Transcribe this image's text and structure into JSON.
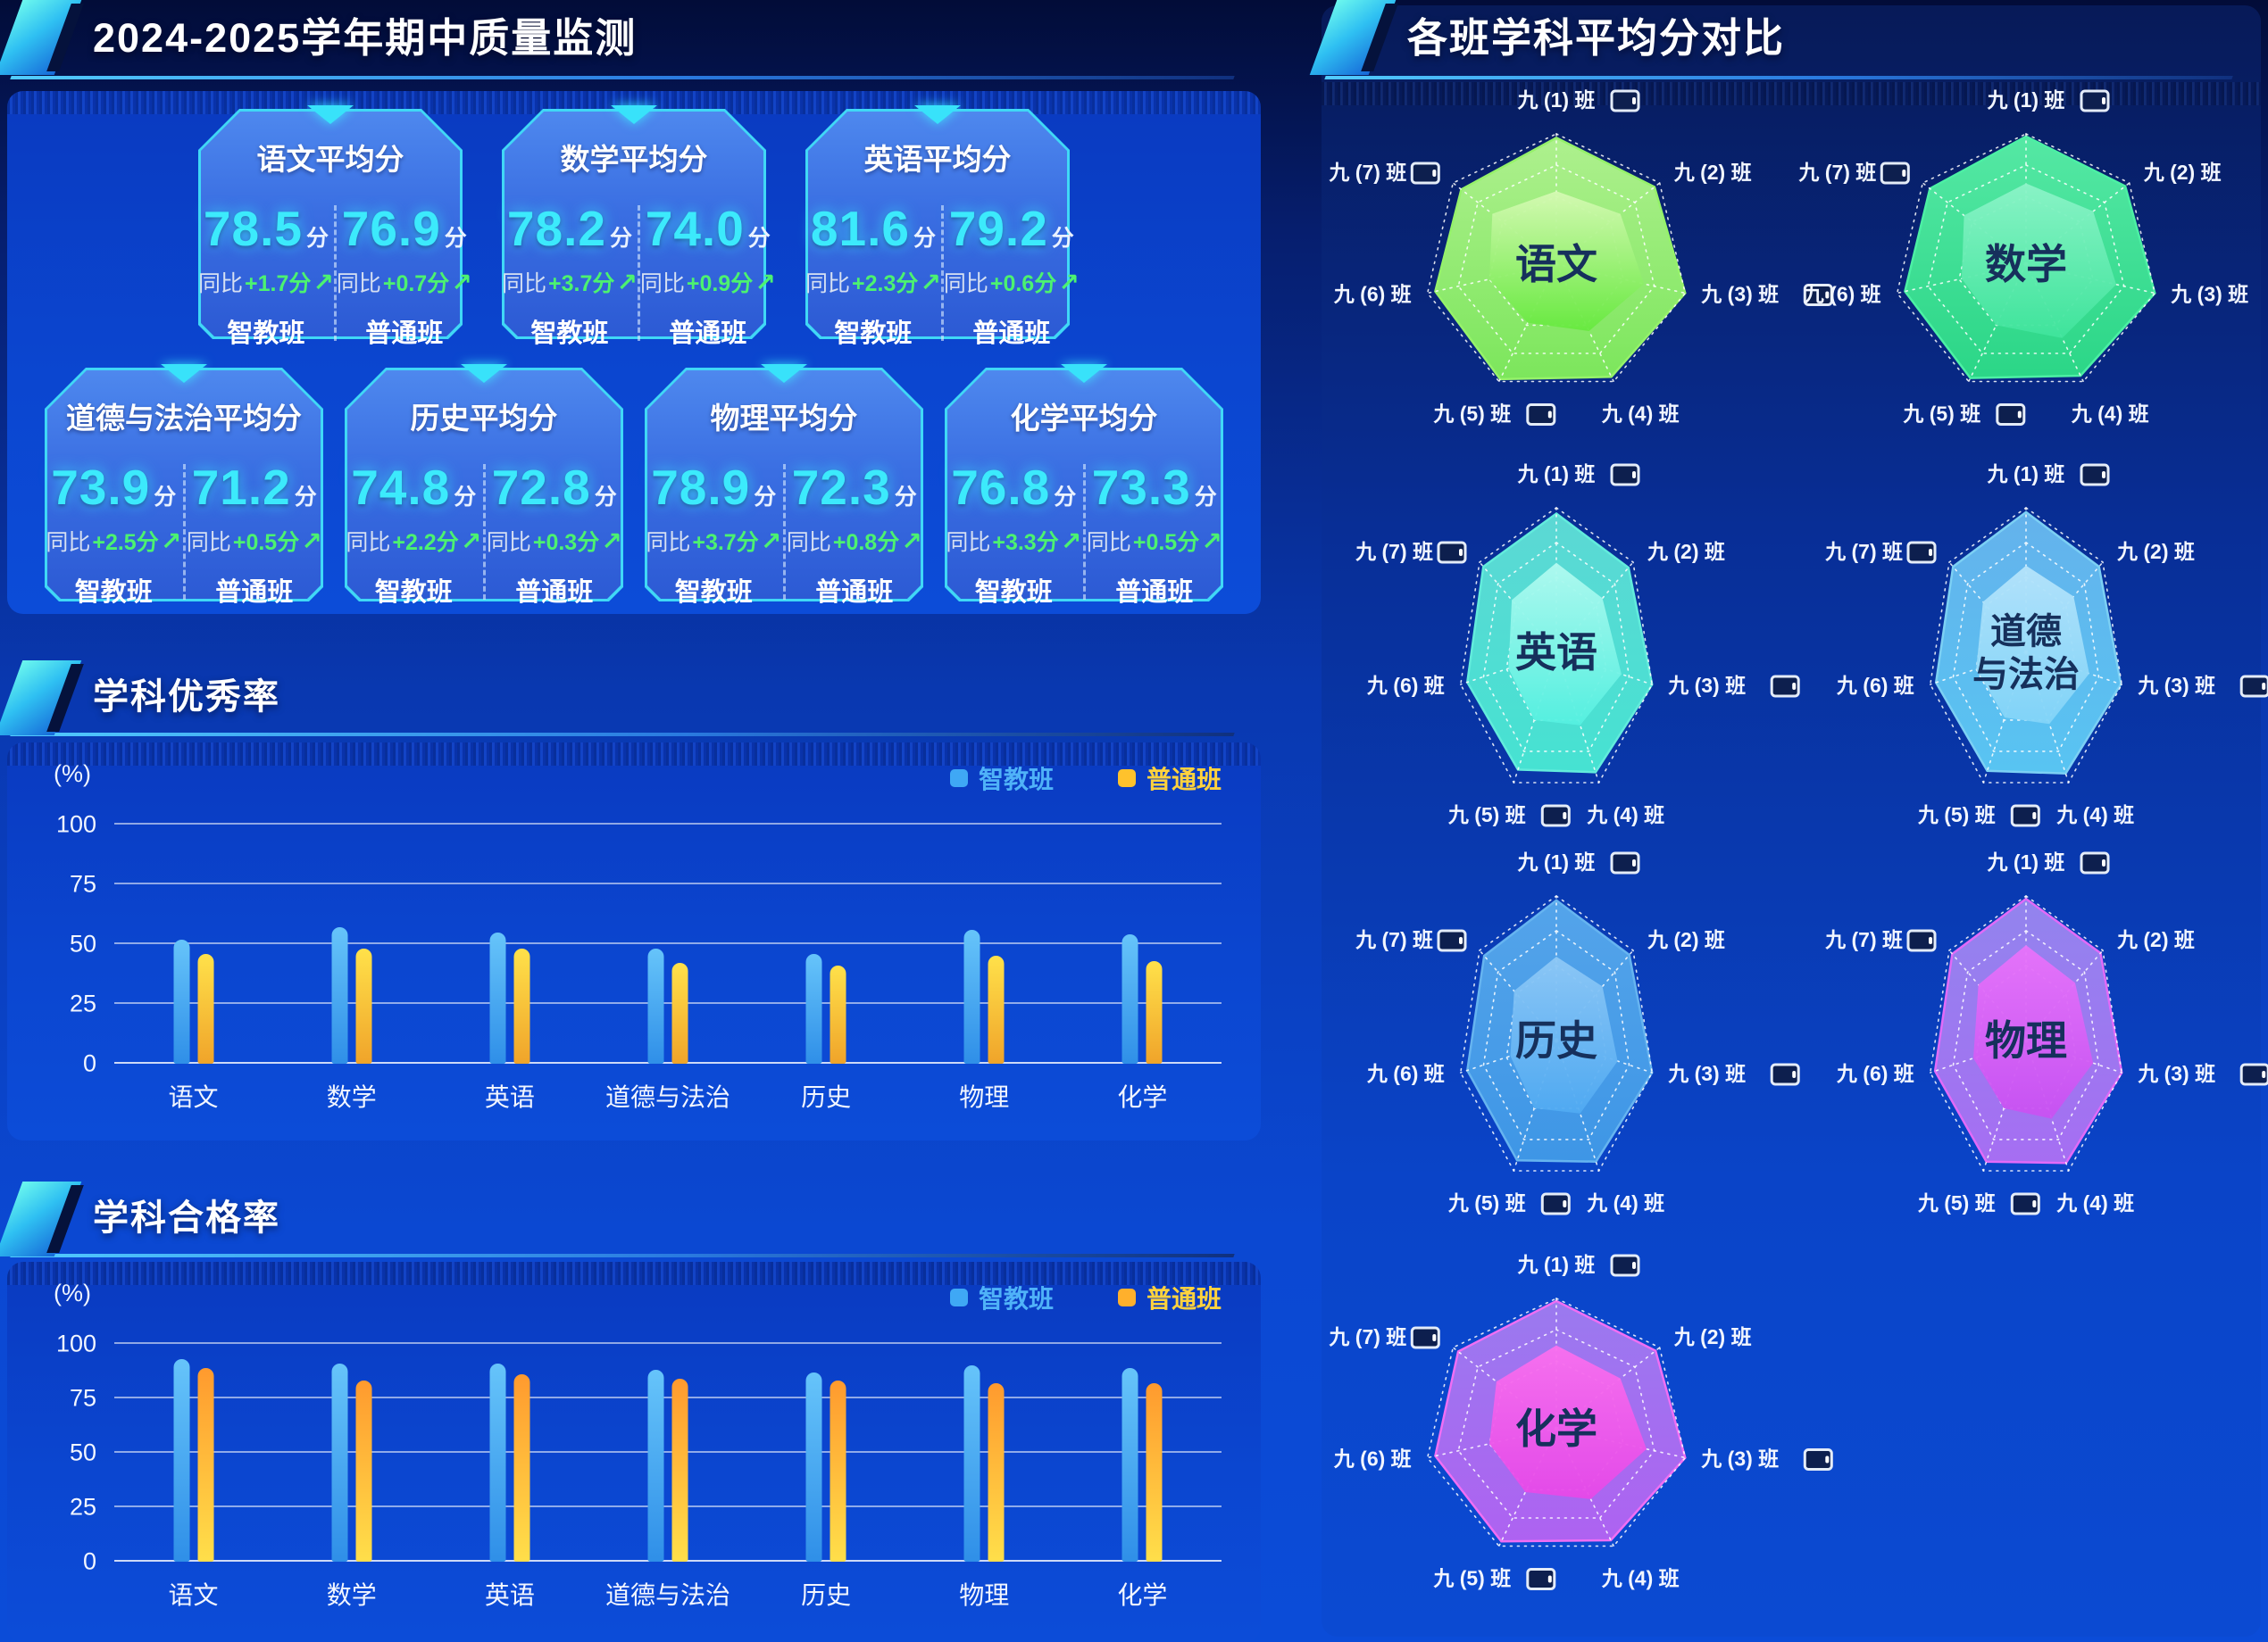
{
  "page": {
    "left": {
      "title": "2024-2025学年期中质量监测",
      "excellence_header": "学科优秀率",
      "pass_header": "学科合格率"
    },
    "right": {
      "header": "各班学科平均分对比"
    },
    "card_labels": {
      "yoy": "同比",
      "unit": "分",
      "smart": "智教班",
      "regular": "普通班",
      "up_arrow": "↗"
    },
    "colors": {
      "accent_cyan": "#3ceafc",
      "delta_green": "#4cf270",
      "card_border": "#40d8f6",
      "smart_bar_blue": "#3fa8f5",
      "regular_bar_yellow": "#ffc22c",
      "regular_bar_orange": "#ff9a2e"
    }
  },
  "score_cards": [
    {
      "subject": "语文平均分",
      "smart_score": "78.5",
      "smart_delta": "+1.7分",
      "regular_score": "76.9",
      "regular_delta": "+0.7分"
    },
    {
      "subject": "数学平均分",
      "smart_score": "78.2",
      "smart_delta": "+3.7分",
      "regular_score": "74.0",
      "regular_delta": "+0.9分"
    },
    {
      "subject": "英语平均分",
      "smart_score": "81.6",
      "smart_delta": "+2.3分",
      "regular_score": "79.2",
      "regular_delta": "+0.6分"
    },
    {
      "subject": "道德与法治平均分",
      "smart_score": "73.9",
      "smart_delta": "+2.5分",
      "regular_score": "71.2",
      "regular_delta": "+0.5分"
    },
    {
      "subject": "历史平均分",
      "smart_score": "74.8",
      "smart_delta": "+2.2分",
      "regular_score": "72.8",
      "regular_delta": "+0.3分"
    },
    {
      "subject": "物理平均分",
      "smart_score": "78.9",
      "smart_delta": "+3.7分",
      "regular_score": "72.3",
      "regular_delta": "+0.8分"
    },
    {
      "subject": "化学平均分",
      "smart_score": "76.8",
      "smart_delta": "+3.3分",
      "regular_score": "73.3",
      "regular_delta": "+0.5分"
    }
  ],
  "chart_data": [
    {
      "type": "bar",
      "title": "学科优秀率",
      "ylabel": "(%)",
      "ylim": [
        0,
        100
      ],
      "yticks": [
        0,
        25,
        50,
        75,
        100
      ],
      "grid": true,
      "legend_position": "top-right",
      "categories": [
        "语文",
        "数学",
        "英语",
        "道德与法治",
        "历史",
        "物理",
        "化学"
      ],
      "series": [
        {
          "name": "智教班",
          "key": "smart",
          "swatch": "#3fa8f5",
          "label_color": "#4fb2f8",
          "grad": [
            "#66c4fa",
            "#2f8fe8"
          ],
          "values": [
            52,
            57,
            55,
            48,
            46,
            56,
            54
          ]
        },
        {
          "name": "普通班",
          "key": "regular",
          "swatch": "#ffc22c",
          "label_color": "#ffd23e",
          "grad": [
            "#ffe14a",
            "#f0a42a"
          ],
          "values": [
            46,
            48,
            48,
            42,
            41,
            45,
            43
          ]
        }
      ]
    },
    {
      "type": "bar",
      "title": "学科合格率",
      "ylabel": "(%)",
      "ylim": [
        0,
        100
      ],
      "yticks": [
        0,
        25,
        50,
        75,
        100
      ],
      "grid": true,
      "legend_position": "top-right",
      "categories": [
        "语文",
        "数学",
        "英语",
        "道德与法治",
        "历史",
        "物理",
        "化学"
      ],
      "series": [
        {
          "name": "智教班",
          "key": "smart",
          "swatch": "#3fa8f5",
          "label_color": "#4fb2f8",
          "grad": [
            "#66c4fa",
            "#2f8fe8"
          ],
          "values": [
            93,
            91,
            91,
            88,
            87,
            90,
            89
          ]
        },
        {
          "name": "普通班",
          "key": "regular",
          "swatch": "#ffb02c",
          "label_color": "#ffd23e",
          "grad": [
            "#ff9a2e",
            "#ffdf4a"
          ],
          "values": [
            89,
            83,
            86,
            84,
            83,
            82,
            82
          ]
        }
      ]
    },
    {
      "type": "radar",
      "title": "各班学科平均分对比",
      "axes": [
        "九 (1) 班",
        "九 (2) 班",
        "九 (3) 班",
        "九 (4) 班",
        "九 (5) 班",
        "九 (6) 班",
        "九 (7) 班"
      ],
      "device_icon_on_axes": [
        true,
        false,
        true,
        false,
        true,
        false,
        true
      ],
      "rings": [
        1,
        0.76,
        0.52
      ],
      "subjects": [
        {
          "name": "语文",
          "shape": "wide",
          "stroke": "#96f26a",
          "grad_outer": [
            "#aef08e",
            "#7ce65c"
          ],
          "grad_inner": [
            "#d6fab4",
            "#66e93e"
          ],
          "outer": [
            0.97,
            0.95,
            1.0,
            0.96,
            0.98,
            0.94,
            0.92
          ],
          "inner": [
            0.56,
            0.62,
            0.68,
            0.57,
            0.5,
            0.52,
            0.62
          ]
        },
        {
          "name": "数学",
          "shape": "wide",
          "stroke": "#4cf0a4",
          "grad_outer": [
            "#55e8a4",
            "#2bd687"
          ],
          "grad_inner": [
            "#8cf4c8",
            "#3fe49c"
          ],
          "outer": [
            0.98,
            0.96,
            1.0,
            0.95,
            0.97,
            0.94,
            0.93
          ],
          "inner": [
            0.62,
            0.65,
            0.7,
            0.63,
            0.52,
            0.5,
            0.6
          ]
        },
        {
          "name": "英语",
          "shape": "narrow",
          "stroke": "#62ecdc",
          "grad_outer": [
            "#5cd8d4",
            "#46e2d2"
          ],
          "grad_inner": [
            "#b2faf0",
            "#55f0e0"
          ],
          "outer": [
            0.96,
            0.94,
            1.0,
            0.92,
            0.9,
            0.93,
            0.95
          ],
          "inner": [
            0.62,
            0.6,
            0.68,
            0.56,
            0.52,
            0.5,
            0.58
          ]
        },
        {
          "name": "道德与法治",
          "name_lines": [
            "道德",
            "与法治"
          ],
          "shape": "narrow",
          "stroke": "#7cd0f4",
          "grad_outer": [
            "#64b2ec",
            "#58c4f2"
          ],
          "grad_inner": [
            "#b6e4fb",
            "#82d4f8"
          ],
          "outer": [
            0.97,
            0.95,
            0.99,
            0.93,
            0.91,
            0.94,
            0.95
          ],
          "inner": [
            0.6,
            0.62,
            0.66,
            0.55,
            0.5,
            0.52,
            0.56
          ]
        },
        {
          "name": "历史",
          "shape": "narrow",
          "stroke": "#66b4f0",
          "grad_outer": [
            "#54a4ea",
            "#3e96e6"
          ],
          "grad_inner": [
            "#8ec8f6",
            "#50aaf2"
          ],
          "outer": [
            0.97,
            0.95,
            1.0,
            0.93,
            0.92,
            0.93,
            0.94
          ],
          "inner": [
            0.58,
            0.6,
            0.64,
            0.56,
            0.52,
            0.48,
            0.55
          ]
        },
        {
          "name": "物理",
          "shape": "narrow",
          "stroke": "#e26af8",
          "grad_outer": [
            "#9284ee",
            "#a66ef2"
          ],
          "grad_inner": [
            "#e873fa",
            "#c851f2"
          ],
          "outer": [
            0.98,
            0.97,
            1.0,
            0.94,
            0.93,
            0.95,
            0.96
          ],
          "inner": [
            0.66,
            0.64,
            0.7,
            0.6,
            0.52,
            0.55,
            0.62
          ]
        },
        {
          "name": "化学",
          "shape": "wide",
          "stroke": "#f06ef4",
          "grad_outer": [
            "#9a7aef",
            "#ae62f1"
          ],
          "grad_inner": [
            "#fa70ee",
            "#e648e8"
          ],
          "outer": [
            0.98,
            0.96,
            1.0,
            0.95,
            0.96,
            0.94,
            0.95
          ],
          "inner": [
            0.64,
            0.62,
            0.7,
            0.6,
            0.54,
            0.52,
            0.58
          ]
        }
      ]
    }
  ]
}
